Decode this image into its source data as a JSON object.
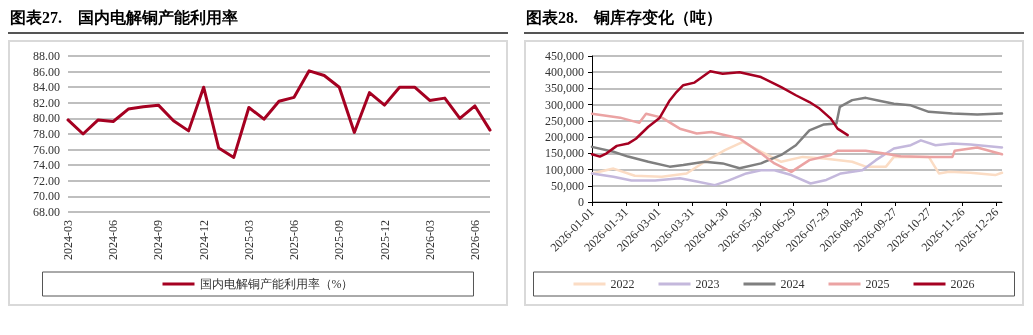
{
  "chart_data": [
    {
      "type": "line",
      "title": "图表27.　国内电解铜产能利用率",
      "categories": [
        "2024-03",
        null,
        null,
        "2024-06",
        null,
        null,
        "2024-09",
        null,
        null,
        "2024-12",
        null,
        null,
        "2025-03",
        null,
        null,
        "2025-06",
        null,
        null,
        "2025-09",
        null,
        null,
        "2025-12",
        null,
        null,
        "2026-03",
        null,
        null,
        "2026-06",
        null
      ],
      "series": [
        {
          "name": "国内电解铜产能利用率（%）",
          "color": "#a50021",
          "values": [
            79.8,
            78.0,
            79.8,
            79.6,
            81.2,
            81.5,
            81.7,
            79.7,
            78.4,
            84.0,
            76.2,
            75.0,
            81.4,
            79.9,
            82.2,
            82.7,
            86.1,
            85.5,
            84.0,
            78.2,
            83.3,
            81.7,
            84.0,
            84.0,
            82.3,
            82.6,
            80.0,
            81.6,
            78.5
          ]
        }
      ],
      "ylim": [
        68,
        88
      ],
      "yticks": [
        {
          "value": 68,
          "label": "68.00"
        },
        {
          "value": 70,
          "label": "70.00"
        },
        {
          "value": 72,
          "label": "72.00"
        },
        {
          "value": 74,
          "label": "74.00"
        },
        {
          "value": 76,
          "label": "76.00"
        },
        {
          "value": 78,
          "label": "78.00"
        },
        {
          "value": 80,
          "label": "80.00"
        },
        {
          "value": 82,
          "label": "82.00"
        },
        {
          "value": 84,
          "label": "84.00"
        },
        {
          "value": 86,
          "label": "86.00"
        },
        {
          "value": 88,
          "label": "88.00"
        }
      ],
      "grid": "y",
      "legend": "bottom",
      "marker": "none"
    },
    {
      "type": "line",
      "title": "图表28.　铜库存变化（吨）",
      "series": [
        {
          "name": "2022",
          "color": "#fbdcc4",
          "x": [
            "2026-01-01",
            "2026-01-20",
            "2026-02-08",
            "2026-03-04",
            "2026-03-26",
            "2026-04-11",
            "2026-04-29",
            "2026-05-15",
            "2026-05-31",
            "2026-06-18",
            "2026-07-07",
            "2026-07-26",
            "2026-08-20",
            "2026-09-01",
            "2026-09-19",
            "2026-09-26",
            "2026-10-27",
            "2026-11-05",
            "2026-11-14",
            "2026-12-03",
            "2026-12-25",
            "2026-12-31"
          ],
          "values": [
            88000,
            103000,
            81000,
            78000,
            88000,
            124000,
            160000,
            185000,
            155000,
            124000,
            139000,
            134000,
            124000,
            109000,
            109000,
            139000,
            139000,
            88000,
            93000,
            90000,
            83000,
            90000
          ]
        },
        {
          "name": "2023",
          "color": "#c4b8dc",
          "x": [
            "2026-01-01",
            "2026-01-20",
            "2026-02-05",
            "2026-02-26",
            "2026-03-20",
            "2026-04-04",
            "2026-04-20",
            "2026-05-02",
            "2026-05-18",
            "2026-05-31",
            "2026-06-12",
            "2026-06-27",
            "2026-07-14",
            "2026-07-28",
            "2026-08-10",
            "2026-08-29",
            "2026-09-10",
            "2026-09-26",
            "2026-10-11",
            "2026-10-20",
            "2026-11-02",
            "2026-11-17",
            "2026-12-03",
            "2026-12-31"
          ],
          "values": [
            88000,
            78000,
            66000,
            66000,
            73000,
            63000,
            52000,
            66000,
            88000,
            98000,
            98000,
            83000,
            57000,
            68000,
            88000,
            98000,
            129000,
            165000,
            175000,
            190000,
            175000,
            180000,
            177000,
            168000
          ]
        },
        {
          "name": "2024",
          "color": "#7f7f7f",
          "x": [
            "2026-01-01",
            "2026-01-20",
            "2026-02-02",
            "2026-02-20",
            "2026-03-11",
            "2026-03-23",
            "2026-04-11",
            "2026-04-27",
            "2026-05-12",
            "2026-05-31",
            "2026-06-18",
            "2026-07-01",
            "2026-07-13",
            "2026-07-26",
            "2026-08-06",
            "2026-08-09",
            "2026-08-20",
            "2026-09-01",
            "2026-09-13",
            "2026-09-26",
            "2026-10-11",
            "2026-10-27",
            "2026-11-17",
            "2026-12-09",
            "2026-12-31"
          ],
          "values": [
            170000,
            155000,
            140000,
            124000,
            109000,
            114000,
            124000,
            119000,
            104000,
            119000,
            145000,
            175000,
            221000,
            239000,
            242000,
            293000,
            314000,
            321000,
            312000,
            303000,
            298000,
            278000,
            273000,
            270000,
            273000
          ]
        },
        {
          "name": "2025",
          "color": "#eba3a3",
          "x": [
            "2026-01-01",
            "2026-01-26",
            "2026-02-12",
            "2026-02-18",
            "2026-03-04",
            "2026-03-20",
            "2026-04-04",
            "2026-04-17",
            "2026-05-12",
            "2026-05-31",
            "2026-06-12",
            "2026-06-27",
            "2026-07-13",
            "2026-08-01",
            "2026-08-07",
            "2026-09-01",
            "2026-09-16",
            "2026-10-02",
            "2026-10-27",
            "2026-11-17",
            "2026-11-19",
            "2026-12-09",
            "2026-12-31"
          ],
          "values": [
            272000,
            260000,
            244000,
            272000,
            260000,
            226000,
            211000,
            216000,
            196000,
            150000,
            119000,
            93000,
            129000,
            145000,
            158000,
            158000,
            150000,
            141000,
            139000,
            139000,
            158000,
            168000,
            147000
          ]
        },
        {
          "name": "2026",
          "color": "#a50021",
          "x": [
            "2026-01-01",
            "2026-01-08",
            "2026-01-14",
            "2026-01-23",
            "2026-02-02",
            "2026-02-09",
            "2026-02-20",
            "2026-03-02",
            "2026-03-11",
            "2026-03-17",
            "2026-03-23",
            "2026-04-02",
            "2026-04-16",
            "2026-04-27",
            "2026-05-12",
            "2026-05-31",
            "2026-06-18",
            "2026-07-01",
            "2026-07-13",
            "2026-07-22",
            "2026-08-01",
            "2026-08-07",
            "2026-08-16"
          ],
          "values": [
            147000,
            140000,
            150000,
            173000,
            180000,
            195000,
            232000,
            259000,
            313000,
            339000,
            360000,
            368000,
            403000,
            395000,
            400000,
            385000,
            354000,
            329000,
            308000,
            288000,
            257000,
            226000,
            206000
          ]
        }
      ],
      "xlim": [
        "2026-01-01",
        "2026-12-31"
      ],
      "xticks": [
        "2026-01-01",
        "2026-01-31",
        "2026-03-01",
        "2026-03-31",
        "2026-04-30",
        "2026-05-30",
        "2026-06-29",
        "2026-07-29",
        "2026-08-28",
        "2026-09-27",
        "2026-10-27",
        "2026-11-26",
        "2026-12-26"
      ],
      "ylim": [
        0,
        450000
      ],
      "yticks": [
        0,
        {
          "value": 50000,
          "label": "50,000"
        },
        {
          "value": 100000,
          "label": "100,000"
        },
        {
          "value": 150000,
          "label": "150,000"
        },
        {
          "value": 200000,
          "label": "200,000"
        },
        {
          "value": 250000,
          "label": "250,000"
        },
        {
          "value": 300000,
          "label": "300,000"
        },
        {
          "value": 350000,
          "label": "350,000"
        },
        {
          "value": 400000,
          "label": "400,000"
        },
        {
          "value": 450000,
          "label": "450,000"
        }
      ],
      "grid": "y",
      "legend": "bottom",
      "marker": "none"
    }
  ]
}
